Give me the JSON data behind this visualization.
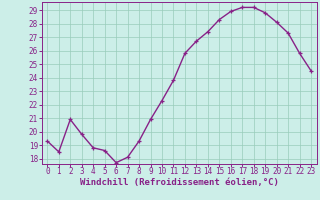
{
  "x": [
    0,
    1,
    2,
    3,
    4,
    5,
    6,
    7,
    8,
    9,
    10,
    11,
    12,
    13,
    14,
    15,
    16,
    17,
    18,
    19,
    20,
    21,
    22,
    23
  ],
  "y": [
    19.3,
    18.5,
    20.9,
    19.8,
    18.8,
    18.6,
    17.7,
    18.1,
    19.3,
    20.9,
    22.3,
    23.8,
    25.8,
    26.7,
    27.4,
    28.3,
    28.9,
    29.2,
    29.2,
    28.8,
    28.1,
    27.3,
    25.8,
    24.5
  ],
  "line_color": "#882288",
  "marker": "+",
  "marker_size": 3.5,
  "linewidth": 1.0,
  "bg_color": "#cceee8",
  "grid_color": "#99ccbb",
  "xlabel": "Windchill (Refroidissement éolien,°C)",
  "xlabel_color": "#882288",
  "xlabel_fontsize": 6.5,
  "ylabel_ticks": [
    18,
    19,
    20,
    21,
    22,
    23,
    24,
    25,
    26,
    27,
    28,
    29
  ],
  "xlim": [
    -0.5,
    23.5
  ],
  "ylim": [
    17.6,
    29.6
  ],
  "tick_fontsize": 5.5,
  "spine_color": "#882288"
}
